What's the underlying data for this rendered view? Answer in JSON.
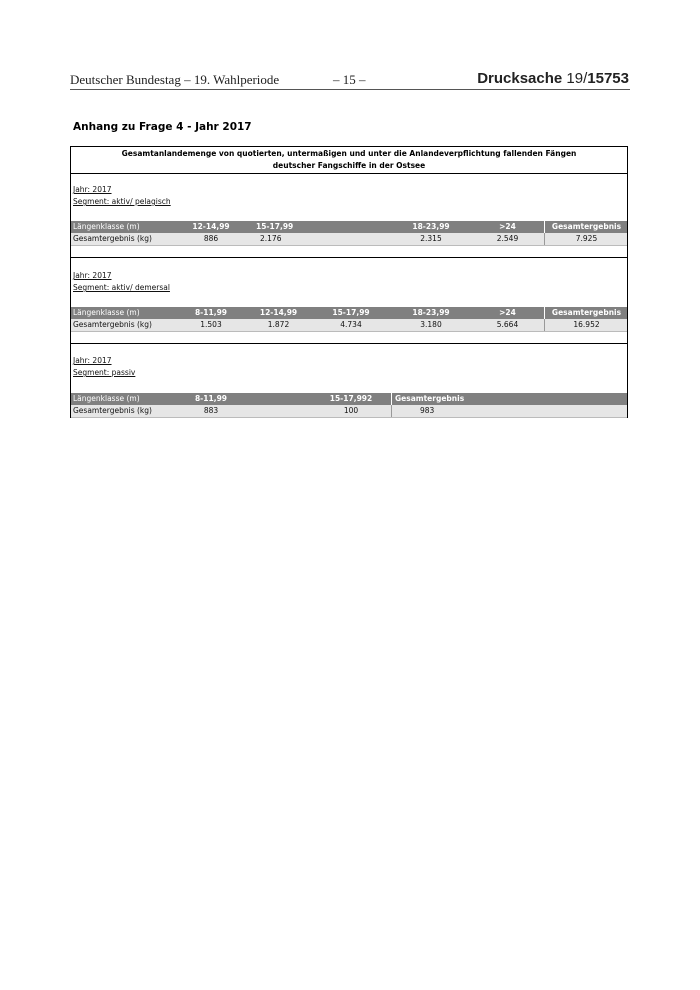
{
  "header": {
    "left": "Deutscher Bundestag – 19. Wahlperiode",
    "center": "– 15 –",
    "right_bold1": "Drucksache",
    "right_normal": " 19/",
    "right_bold2": "15753"
  },
  "heading": "Anhang zu Frage 4 - Jahr 2017",
  "table": {
    "title_line1": "Gesamtanlandemenge von quotierten, untermaßigen und unter die Anlandeverpflichtung fallenden Fängen",
    "title_line2": "deutscher Fangschiffe in der Ostsee",
    "sections": [
      {
        "jahr": "Jahr: 2017",
        "segment": "Segment: aktiv/ pelagisch",
        "header": [
          "Längenklasse (m)",
          "12-14,99",
          "15-17,99",
          "18-23,99",
          ">24",
          "Gesamtergebnis"
        ],
        "values": [
          "Gesamtergebnis (kg)",
          "886",
          "2.176",
          "2.315",
          "2.549",
          "7.925"
        ]
      },
      {
        "jahr": "Jahr: 2017",
        "segment": "Segment: aktiv/ demersal",
        "header": [
          "Längenklasse (m)",
          "8-11,99",
          "12-14,99",
          "15-17,99",
          "18-23,99",
          ">24",
          "Gesamtergebnis"
        ],
        "values": [
          "Gesamtergebnis (kg)",
          "1.503",
          "1.872",
          "4.734",
          "3.180",
          "5.664",
          "16.952"
        ]
      },
      {
        "jahr": "Jahr: 2017",
        "segment": "Segment: passiv",
        "header": [
          "Längenklasse (m)",
          "8-11,99",
          "15-17,992",
          "Gesamtergebnis"
        ],
        "values": [
          "Gesamtergebnis (kg)",
          "883",
          "100",
          "983"
        ]
      }
    ]
  }
}
